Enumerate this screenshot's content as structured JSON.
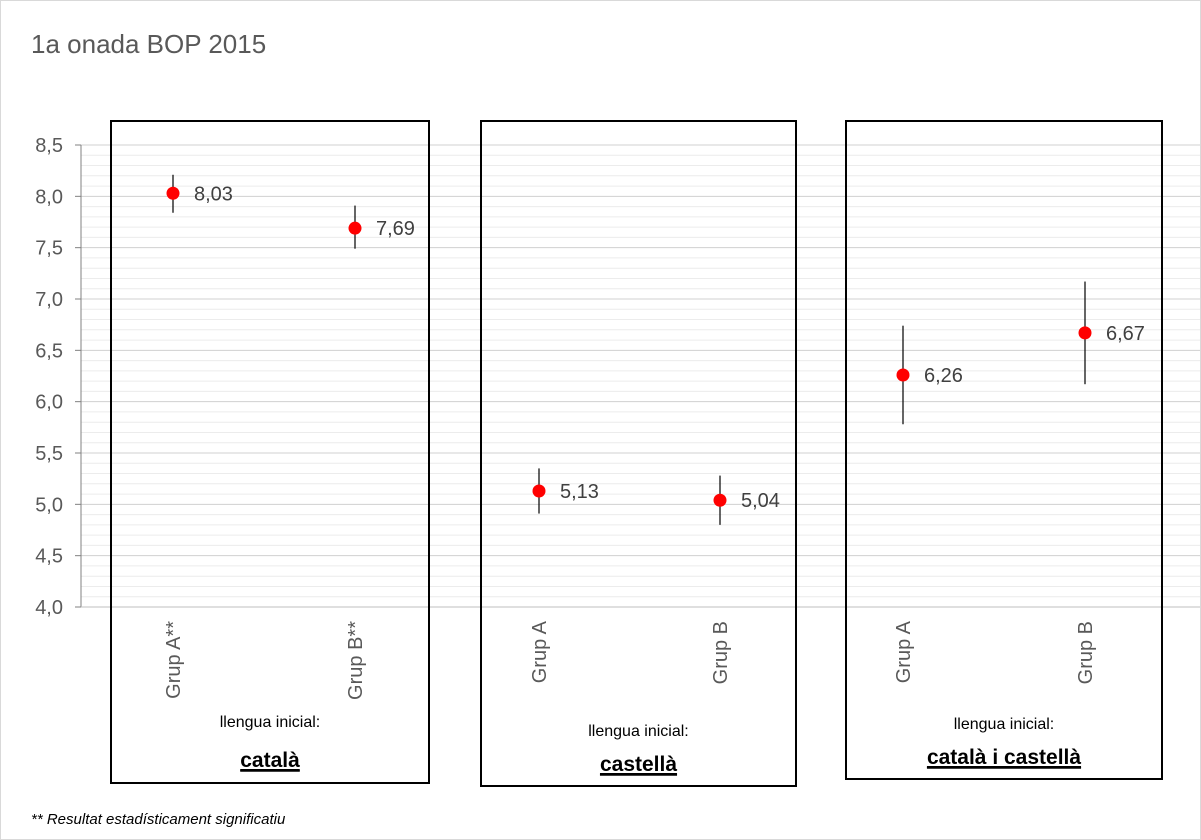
{
  "chart_data": {
    "type": "scatter",
    "title": "1a onada BOP 2015",
    "ylim": [
      4.0,
      8.5
    ],
    "ytick_labels": [
      "4,0",
      "4,5",
      "5,0",
      "5,5",
      "6,0",
      "6,5",
      "7,0",
      "7,5",
      "8,0",
      "8,5"
    ],
    "grid": true,
    "marker_color": "#ff0000",
    "errorbar_color": "#000000",
    "panels": [
      {
        "group_caption": "llengua inicial:",
        "group_label": "català",
        "categories": [
          "Grup A**",
          "Grup B**"
        ],
        "values": [
          8.03,
          7.69
        ],
        "value_labels": [
          "8,03",
          "7,69"
        ],
        "error_low": [
          7.84,
          7.49
        ],
        "error_high": [
          8.21,
          7.91
        ]
      },
      {
        "group_caption": "llengua inicial:",
        "group_label": "castellà",
        "categories": [
          "Grup A",
          "Grup B"
        ],
        "values": [
          5.13,
          5.04
        ],
        "value_labels": [
          "5,13",
          "5,04"
        ],
        "error_low": [
          4.91,
          4.8
        ],
        "error_high": [
          5.35,
          5.28
        ]
      },
      {
        "group_caption": "llengua inicial:",
        "group_label": "català i castellà",
        "categories": [
          "Grup A",
          "Grup B"
        ],
        "values": [
          6.26,
          6.67
        ],
        "value_labels": [
          "6,26",
          "6,67"
        ],
        "error_low": [
          5.78,
          6.17
        ],
        "error_high": [
          6.74,
          7.17
        ]
      }
    ]
  },
  "footnote": "** Resultat estadísticament significatiu"
}
